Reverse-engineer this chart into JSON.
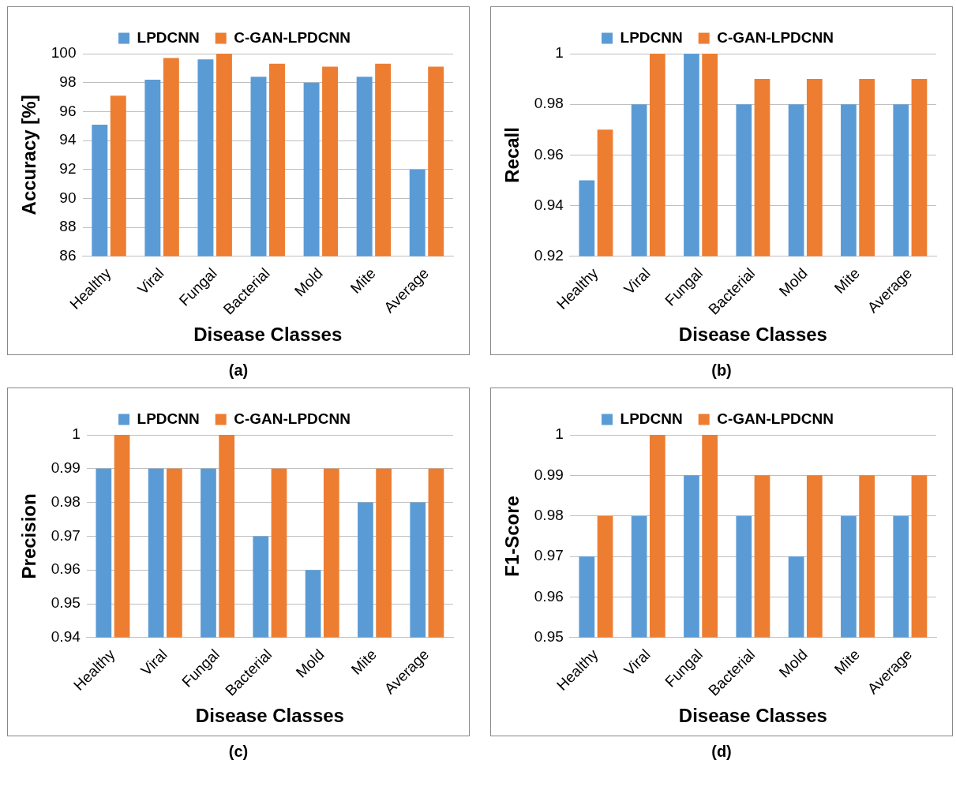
{
  "chart_data": [
    {
      "type": "bar",
      "xlabel": "Disease Classes",
      "ylabel": "Accuracy [%]",
      "categories": [
        "Healthy",
        "Viral",
        "Fungal",
        "Bacterial",
        "Mold",
        "Mite",
        "Average"
      ],
      "series": [
        {
          "name": "LPDCNN",
          "color": "#5b9bd5",
          "values": [
            95.1,
            98.2,
            99.6,
            98.4,
            98.0,
            98.4,
            92.0
          ]
        },
        {
          "name": "C-GAN-LPDCNN",
          "color": "#ed7d31",
          "values": [
            97.1,
            99.7,
            100,
            99.3,
            99.1,
            99.3,
            99.1
          ]
        }
      ],
      "ylim": [
        86,
        100
      ],
      "yticks": [
        86,
        88,
        90,
        92,
        94,
        96,
        98,
        100
      ],
      "grid": "y",
      "legend": "top",
      "annotations": [
        "(a)"
      ]
    },
    {
      "type": "bar",
      "xlabel": "Disease Classes",
      "ylabel": "Recall",
      "categories": [
        "Healthy",
        "Viral",
        "Fungal",
        "Bacterial",
        "Mold",
        "Mite",
        "Average"
      ],
      "series": [
        {
          "name": "LPDCNN",
          "color": "#5b9bd5",
          "values": [
            0.95,
            0.98,
            1,
            0.98,
            0.98,
            0.98,
            0.98
          ]
        },
        {
          "name": "C-GAN-LPDCNN",
          "color": "#ed7d31",
          "values": [
            0.97,
            1,
            1,
            0.99,
            0.99,
            0.99,
            0.99
          ]
        }
      ],
      "ylim": [
        0.92,
        1
      ],
      "yticks": [
        0.92,
        0.94,
        0.96,
        0.98,
        1
      ],
      "grid": "y",
      "legend": "top",
      "annotations": [
        "(b)"
      ]
    },
    {
      "type": "bar",
      "xlabel": "Disease Classes",
      "ylabel": "Precision",
      "categories": [
        "Healthy",
        "Viral",
        "Fungal",
        "Bacterial",
        "Mold",
        "Mite",
        "Average"
      ],
      "series": [
        {
          "name": "LPDCNN",
          "color": "#5b9bd5",
          "values": [
            0.99,
            0.99,
            0.99,
            0.97,
            0.96,
            0.98,
            0.98
          ]
        },
        {
          "name": "C-GAN-LPDCNN",
          "color": "#ed7d31",
          "values": [
            1,
            0.99,
            1,
            0.99,
            0.99,
            0.99,
            0.99
          ]
        }
      ],
      "ylim": [
        0.94,
        1
      ],
      "yticks": [
        0.94,
        0.95,
        0.96,
        0.97,
        0.98,
        0.99,
        1
      ],
      "grid": "y",
      "legend": "top",
      "annotations": [
        "(c)"
      ]
    },
    {
      "type": "bar",
      "xlabel": "Disease Classes",
      "ylabel": "F1-Score",
      "categories": [
        "Healthy",
        "Viral",
        "Fungal",
        "Bacterial",
        "Mold",
        "Mite",
        "Average"
      ],
      "series": [
        {
          "name": "LPDCNN",
          "color": "#5b9bd5",
          "values": [
            0.97,
            0.98,
            0.99,
            0.98,
            0.97,
            0.98,
            0.98
          ]
        },
        {
          "name": "C-GAN-LPDCNN",
          "color": "#ed7d31",
          "values": [
            0.98,
            1,
            1,
            0.99,
            0.99,
            0.99,
            0.99
          ]
        }
      ],
      "ylim": [
        0.95,
        1
      ],
      "yticks": [
        0.95,
        0.96,
        0.97,
        0.98,
        0.99,
        1
      ],
      "grid": "y",
      "legend": "top",
      "annotations": [
        "(d)"
      ]
    }
  ]
}
